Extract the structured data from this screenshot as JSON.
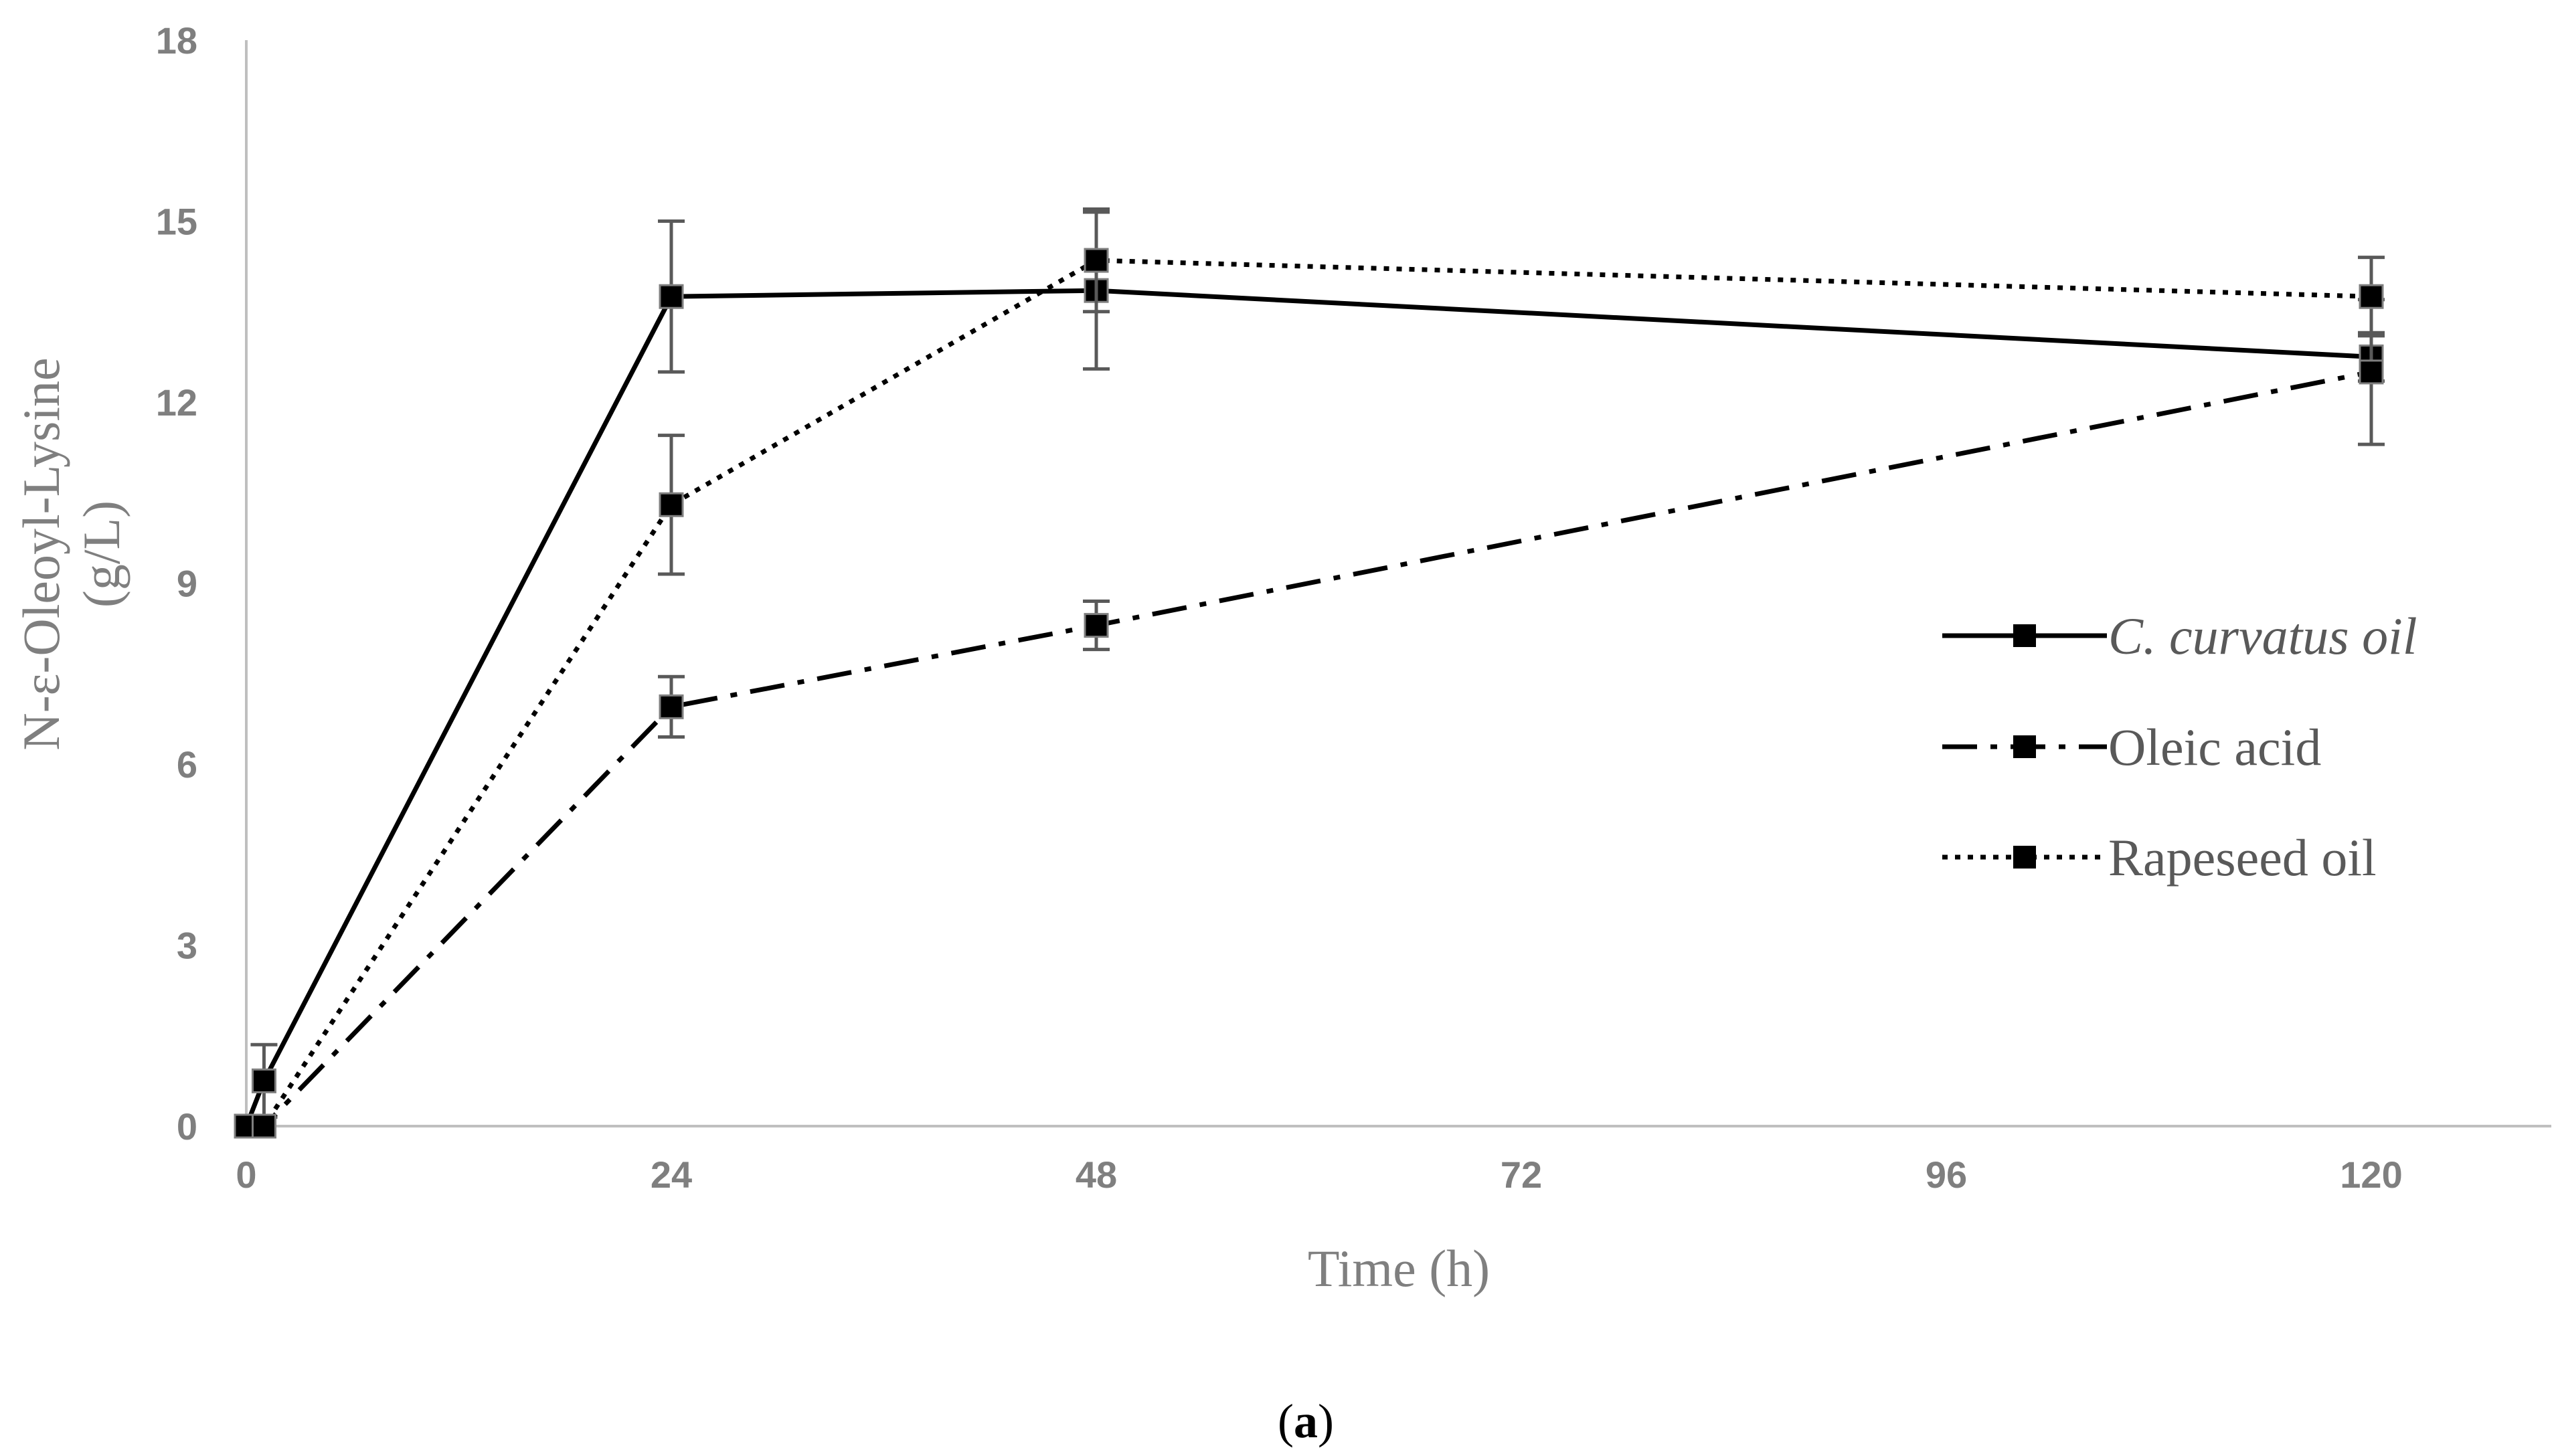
{
  "chart_data": {
    "type": "line",
    "title": "",
    "xlabel": "Time (h)",
    "ylabel_lines": [
      "N-ε-Oleoyl-Lysine",
      "(g/L)"
    ],
    "xlim": [
      0,
      130
    ],
    "ylim": [
      0,
      18
    ],
    "xticks": [
      0,
      24,
      48,
      72,
      96,
      120
    ],
    "yticks": [
      0,
      3,
      6,
      9,
      12,
      15,
      18
    ],
    "grid": false,
    "legend_position": "right",
    "caption": {
      "open": "(",
      "letter": "a",
      "close": ")"
    },
    "series": [
      {
        "name": "C. curvatus oil",
        "dash": "solid",
        "x": [
          0,
          1,
          24,
          48,
          120
        ],
        "y": [
          0,
          0.75,
          13.75,
          13.85,
          12.75
        ],
        "err": [
          0,
          0.6,
          1.25,
          1.3,
          0.4
        ]
      },
      {
        "name": "Oleic acid",
        "dash": "dashdot",
        "x": [
          0,
          1,
          24,
          48,
          120
        ],
        "y": [
          0,
          0,
          6.95,
          8.3,
          12.5
        ],
        "err": [
          0,
          0,
          0.5,
          0.4,
          1.2
        ]
      },
      {
        "name": "Rapeseed oil",
        "dash": "dotted",
        "x": [
          0,
          1,
          24,
          48,
          120
        ],
        "y": [
          0,
          0,
          10.3,
          14.35,
          13.75
        ],
        "err": [
          0,
          0,
          1.15,
          0.85,
          0.65
        ]
      }
    ]
  }
}
